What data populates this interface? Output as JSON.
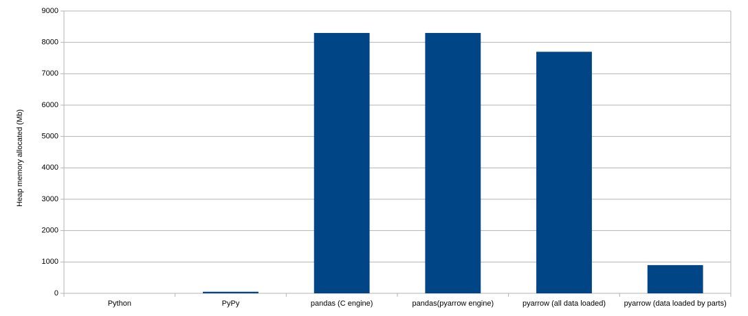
{
  "chart_data": {
    "type": "bar",
    "y_label": "Heap memory allocated (Mb)",
    "categories": [
      "Python",
      "PyPy",
      "pandas (C engine)",
      "pandas(pyarrow engine)",
      "pyarrow (all data loaded)",
      "pyarrow (data loaded by parts)"
    ],
    "values": [
      0,
      50,
      8300,
      8300,
      7700,
      900
    ],
    "color": "#004586",
    "ylim": [
      0,
      9000
    ],
    "yticks": [
      0,
      1000,
      2000,
      3000,
      4000,
      5000,
      6000,
      7000,
      8000,
      9000
    ],
    "grid": true
  }
}
